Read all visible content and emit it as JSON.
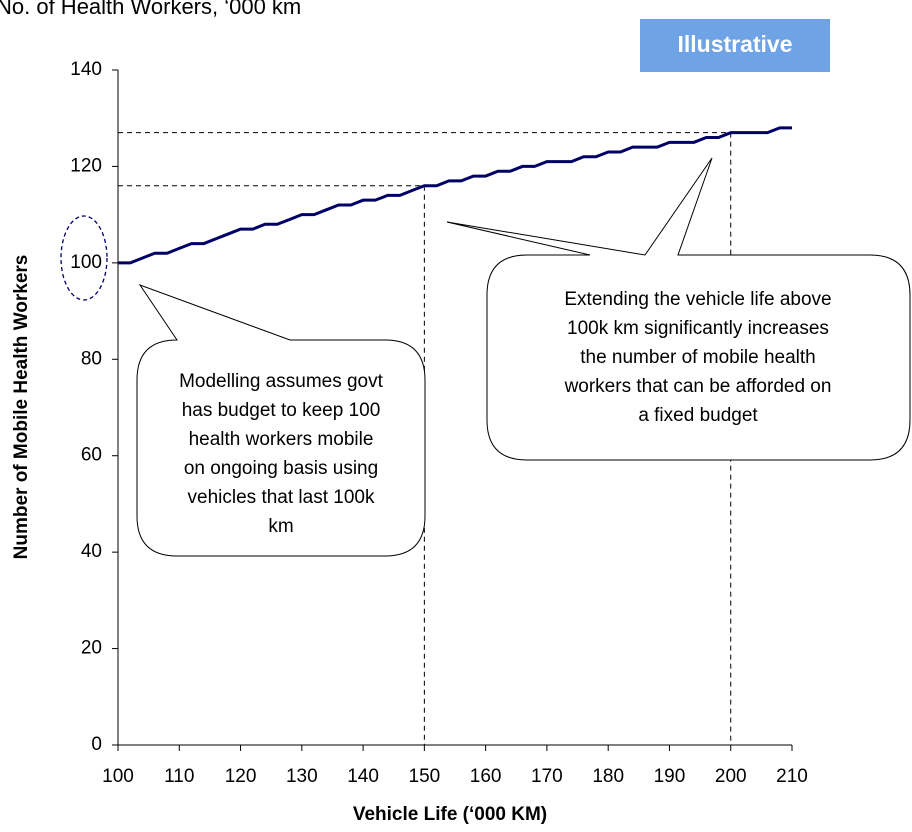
{
  "chart_data": {
    "type": "line",
    "subtitle": "No. of Health Workers, ‘000 km",
    "badge": "Illustrative",
    "x_label": "Vehicle Life (‘000 KM)",
    "y_label": "Number of Mobile Health Workers",
    "x": [
      100,
      102,
      104,
      106,
      108,
      110,
      112,
      114,
      116,
      118,
      120,
      122,
      124,
      126,
      128,
      130,
      132,
      134,
      136,
      138,
      140,
      142,
      144,
      146,
      148,
      150,
      152,
      154,
      156,
      158,
      160,
      162,
      164,
      166,
      168,
      170,
      172,
      174,
      176,
      178,
      180,
      182,
      184,
      186,
      188,
      190,
      192,
      194,
      196,
      198,
      200,
      202,
      204,
      206,
      208,
      210
    ],
    "series": [
      {
        "color": "#000066",
        "values": [
          100,
          100,
          101,
          102,
          102,
          103,
          104,
          104,
          105,
          106,
          107,
          107,
          108,
          108,
          109,
          110,
          110,
          111,
          112,
          112,
          113,
          113,
          114,
          114,
          115,
          116,
          116,
          117,
          117,
          118,
          118,
          119,
          119,
          120,
          120,
          121,
          121,
          121,
          122,
          122,
          123,
          123,
          124,
          124,
          124,
          125,
          125,
          125,
          126,
          126,
          127,
          127,
          127,
          127,
          128,
          128
        ]
      }
    ],
    "reference_points": [
      {
        "x": 150,
        "y": 116
      },
      {
        "x": 200,
        "y": 127
      }
    ],
    "annotations": [
      {
        "lines": [
          "Modelling assumes govt",
          "has budget to keep 100",
          "health workers mobile",
          "on ongoing basis using",
          "vehicles that last 100k",
          "km"
        ]
      },
      {
        "lines": [
          "Extending the vehicle life above",
          "100k km significantly increases",
          "the number of mobile health",
          "workers that can be afforded on",
          "a fixed budget"
        ]
      }
    ],
    "xlim": [
      100,
      210
    ],
    "xticks": [
      100,
      110,
      120,
      130,
      140,
      150,
      160,
      170,
      180,
      190,
      200,
      210
    ],
    "ylim": [
      0,
      140
    ],
    "yticks": [
      0,
      20,
      40,
      60,
      80,
      100,
      120,
      140
    ],
    "grid": false
  }
}
